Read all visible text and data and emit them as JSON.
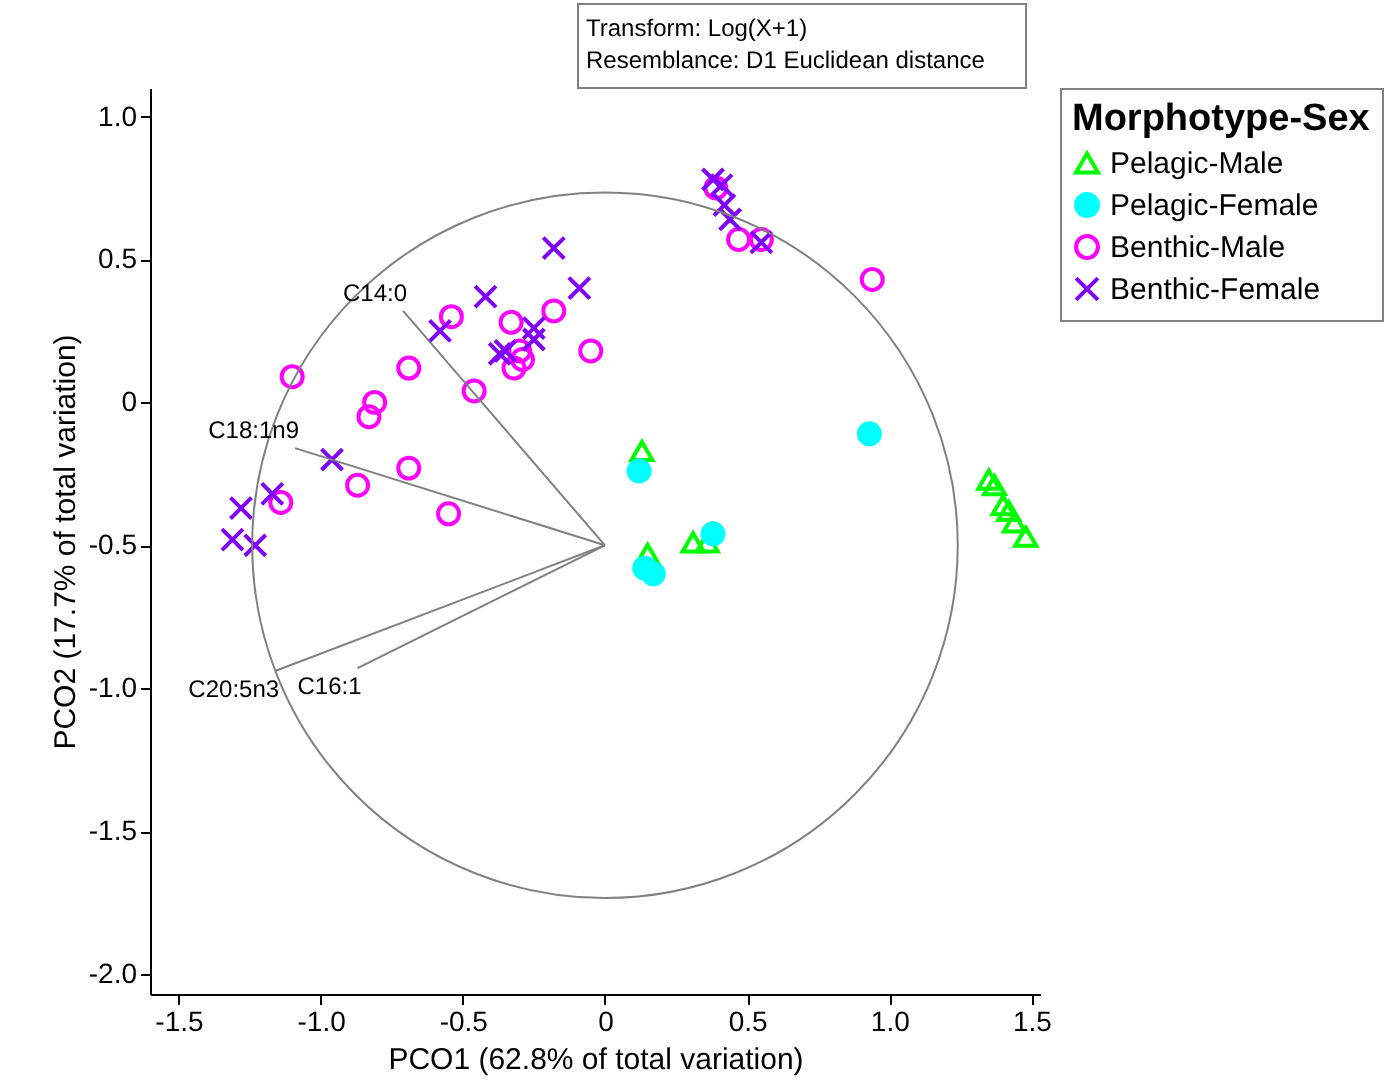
{
  "chart_data": {
    "type": "scatter",
    "xlabel": "PCO1 (62.8% of total variation)",
    "ylabel": "PCO2 (17.7% of total variation)",
    "legend_title": "Morphotype-Sex",
    "legend": "top right",
    "grid": false,
    "xlim": [
      -1.6,
      1.53
    ],
    "ylim": [
      -2.07,
      1.1
    ],
    "xticks": [
      {
        "value": -1.5,
        "label": "-1.5"
      },
      {
        "value": -1,
        "label": "-1.0"
      },
      {
        "value": -0.5,
        "label": "-0.5"
      },
      0,
      0.5,
      {
        "value": 1,
        "label": "1.0"
      },
      1.5
    ],
    "yticks": [
      {
        "value": -2,
        "label": "-2.0"
      },
      -1.5,
      {
        "value": -1,
        "label": "-1.0"
      },
      -0.5,
      {
        "value": 0,
        "label": "0"
      },
      0.5,
      {
        "value": 1,
        "label": "1.0"
      }
    ],
    "annotations": [
      "Transform: Log(X+1)",
      "Resemblance: D1 Euclidean distance",
      {
        "text": "C14:0",
        "x": -0.71,
        "y": 0.32
      },
      {
        "text": "C18:1n9",
        "x": -1.09,
        "y": -0.16
      },
      {
        "text": "C20:5n3",
        "x": -1.16,
        "y": -0.94
      },
      {
        "text": "C16:1",
        "x": -0.87,
        "y": -0.93
      }
    ],
    "series": [
      {
        "name": "Pelagic-Male",
        "marker": "triangle",
        "color": "#00ff00",
        "x": [
          0.13,
          0.15,
          0.31,
          0.36,
          1.35,
          1.37,
          1.4,
          1.42,
          1.44,
          1.48
        ],
        "values": [
          -0.17,
          -0.53,
          -0.49,
          -0.49,
          -0.27,
          -0.29,
          -0.36,
          -0.38,
          -0.42,
          -0.47
        ]
      },
      {
        "name": "Pelagic-Female",
        "marker": "circle",
        "color": "#00ffff",
        "x": [
          0.12,
          0.93,
          0.38,
          0.14,
          0.17
        ],
        "values": [
          -0.24,
          -0.11,
          -0.46,
          -0.58,
          -0.6
        ]
      },
      {
        "name": "Benthic-Male",
        "marker": "circle",
        "color": "#ff00ff",
        "x": [
          -1.1,
          -0.54,
          -0.69,
          -0.81,
          -0.83,
          -0.46,
          -0.33,
          -0.18,
          -0.05,
          -0.3,
          -0.29,
          -0.32,
          -0.69,
          -0.87,
          -1.14,
          -0.55,
          0.39,
          0.47,
          0.55,
          0.94
        ],
        "values": [
          0.09,
          0.3,
          0.12,
          0,
          -0.05,
          0.04,
          0.28,
          0.32,
          0.18,
          0.18,
          0.15,
          0.12,
          -0.23,
          -0.29,
          -0.35,
          -0.39,
          0.75,
          0.57,
          0.57,
          0.43
        ]
      },
      {
        "name": "Benthic-Female",
        "marker": "cross",
        "color": "#7f00ff",
        "x": [
          -0.18,
          -0.09,
          -0.42,
          -0.58,
          -0.25,
          -0.25,
          -0.37,
          -0.35,
          -0.96,
          -1.17,
          -1.28,
          -1.31,
          -1.23,
          0.38,
          0.41,
          0.42,
          0.44,
          0.55
        ],
        "values": [
          0.54,
          0.4,
          0.37,
          0.25,
          0.26,
          0.22,
          0.17,
          0.18,
          -0.2,
          -0.32,
          -0.37,
          -0.48,
          -0.5,
          0.78,
          0.76,
          0.69,
          0.64,
          0.56
        ]
      },
      {
        "type": "line",
        "color": "#808080",
        "x": [
          0,
          -0.71
        ],
        "values": [
          -0.5,
          0.32
        ]
      },
      {
        "type": "line",
        "color": "#808080",
        "x": [
          0,
          -1.09
        ],
        "values": [
          -0.5,
          -0.16
        ]
      },
      {
        "type": "line",
        "color": "#808080",
        "x": [
          0,
          -1.16
        ],
        "values": [
          -0.5,
          -0.94
        ]
      },
      {
        "type": "line",
        "color": "#808080",
        "x": [
          0,
          -0.87
        ],
        "values": [
          -0.5,
          -0.93
        ]
      }
    ]
  }
}
